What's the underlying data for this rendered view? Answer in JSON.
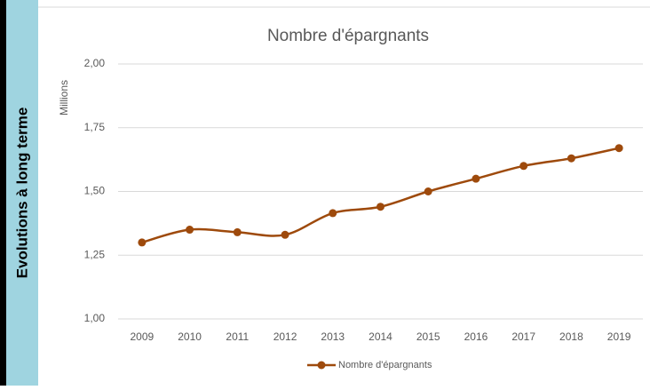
{
  "side_label": "Evolutions à long terme",
  "chart_data": {
    "type": "line",
    "title": "Nombre d'épargnants",
    "y_label": "Millions",
    "categories": [
      "2009",
      "2010",
      "2011",
      "2012",
      "2013",
      "2014",
      "2015",
      "2016",
      "2017",
      "2018",
      "2019"
    ],
    "series": [
      {
        "name": "Nombre d'épargnants",
        "color": "#9e4a0c",
        "values": [
          1.3,
          1.35,
          1.34,
          1.33,
          1.415,
          1.44,
          1.5,
          1.55,
          1.6,
          1.63,
          1.67
        ]
      }
    ],
    "ylim": [
      1.0,
      2.0
    ],
    "yticks": [
      {
        "value": 1.0,
        "label": "1,00"
      },
      {
        "value": 1.25,
        "label": "1,25"
      },
      {
        "value": 1.5,
        "label": "1,50"
      },
      {
        "value": 1.75,
        "label": "1,75"
      },
      {
        "value": 2.0,
        "label": "2,00"
      }
    ],
    "grid": true,
    "legend": "bottom"
  }
}
